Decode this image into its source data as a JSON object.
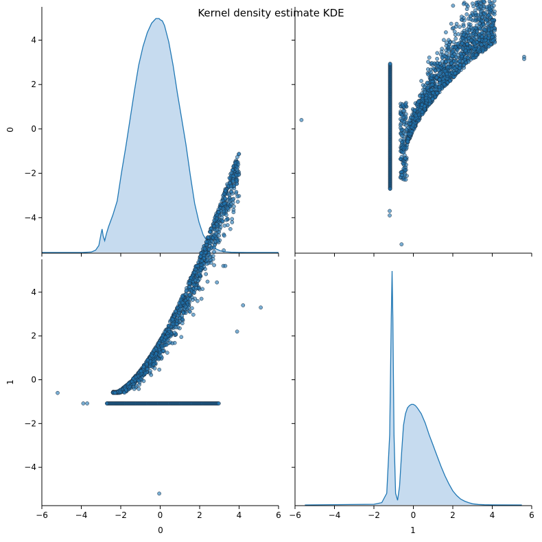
{
  "figure": {
    "title": "Kernel density estimate KDE",
    "colors": {
      "series": "#1f77b4",
      "kde_fill": "#c6dbef",
      "point_edge": "#1b2a3a"
    }
  },
  "chart_data": [
    {
      "panel": "top-left",
      "type": "area",
      "subtype": "kde",
      "variable": "0",
      "xlim": [
        -5.5,
        5.5
      ],
      "x": [
        -5.5,
        -3.6,
        -3.2,
        -3.0,
        -2.85,
        -2.75,
        -2.7,
        -2.65,
        -2.58,
        -2.5,
        -2.4,
        -2.2,
        -2.0,
        -1.8,
        -1.6,
        -1.4,
        -1.2,
        -1.0,
        -0.8,
        -0.6,
        -0.4,
        -0.2,
        -0.05,
        0.0,
        0.1,
        0.2,
        0.4,
        0.6,
        0.8,
        1.0,
        1.2,
        1.4,
        1.6,
        1.8,
        2.0,
        2.2,
        2.4,
        2.6,
        2.8,
        3.0,
        3.3,
        3.6,
        4.0,
        5.5
      ],
      "y_pct": [
        0,
        0,
        0.2,
        1.0,
        3.0,
        8.0,
        10.0,
        7.0,
        5.0,
        8.0,
        11.0,
        16.0,
        22.0,
        34.0,
        45.0,
        57.0,
        69.0,
        80.0,
        88.0,
        94.0,
        98.0,
        100.0,
        100.0,
        99.5,
        99.0,
        97.0,
        90.0,
        80.0,
        68.0,
        57.0,
        46.0,
        33.0,
        21.0,
        13.0,
        7.5,
        4.5,
        2.7,
        1.5,
        0.7,
        0.3,
        0.1,
        0.03,
        0,
        0
      ],
      "ylabel": "0",
      "yticks": [
        -4,
        -2,
        0,
        2,
        4
      ],
      "ylim": [
        -5.6,
        5.5
      ]
    },
    {
      "panel": "top-right",
      "type": "scatter",
      "x_variable": "1",
      "y_variable": "0",
      "xlim": [
        -5.5,
        5.5
      ],
      "ylim": [
        -5.6,
        5.5
      ],
      "floor_x": -1.08,
      "floor_y_range": [
        -2.7,
        2.95
      ],
      "trend_x_range": [
        -0.6,
        3.8
      ],
      "outliers": [
        [
          -5.2,
          0.4
        ],
        [
          -1.1,
          -3.7
        ],
        [
          -1.1,
          -3.9
        ],
        [
          -0.55,
          -5.2
        ],
        [
          3.3,
          5.2
        ],
        [
          5.15,
          3.25
        ],
        [
          5.15,
          3.15
        ],
        [
          -1.08,
          -2.7
        ],
        [
          3.5,
          4.1
        ]
      ]
    },
    {
      "panel": "bottom-left",
      "type": "scatter",
      "x_variable": "0",
      "y_variable": "1",
      "xlabel": "0",
      "ylabel": "1",
      "xlim": [
        -6,
        6
      ],
      "ylim": [
        -5.75,
        5.5
      ],
      "xticks": [
        -6,
        -4,
        -2,
        0,
        2,
        4,
        6
      ],
      "yticks": [
        -4,
        -2,
        0,
        2,
        4
      ],
      "floor_y": -1.08,
      "floor_x_range": [
        -2.7,
        3.0
      ],
      "trend_x_range": [
        -2.4,
        4.0
      ],
      "outliers": [
        [
          -5.2,
          -0.6
        ],
        [
          -3.9,
          -1.08
        ],
        [
          -3.7,
          -1.08
        ],
        [
          -2.7,
          -1.08
        ],
        [
          -0.05,
          -5.2
        ],
        [
          3.2,
          5.2
        ],
        [
          3.3,
          5.2
        ],
        [
          5.1,
          3.3
        ],
        [
          4.2,
          3.4
        ],
        [
          3.9,
          2.2
        ]
      ]
    },
    {
      "panel": "bottom-right",
      "type": "area",
      "subtype": "kde",
      "variable": "1",
      "xlabel": "1",
      "xlim": [
        -6,
        6
      ],
      "xticks": [
        -6,
        -4,
        -2,
        0,
        2,
        4,
        6
      ],
      "x": [
        -5.5,
        -2.0,
        -1.6,
        -1.35,
        -1.2,
        -1.12,
        -1.08,
        -1.04,
        -0.98,
        -0.9,
        -0.8,
        -0.7,
        -0.6,
        -0.5,
        -0.4,
        -0.3,
        -0.2,
        -0.1,
        0.0,
        0.1,
        0.2,
        0.4,
        0.6,
        0.8,
        1.0,
        1.2,
        1.4,
        1.6,
        1.8,
        2.0,
        2.2,
        2.4,
        2.6,
        2.8,
        3.0,
        3.3,
        3.6,
        4.0,
        5.5
      ],
      "y_pct": [
        0,
        0.3,
        1.0,
        5.0,
        30.0,
        80.0,
        100.0,
        80.0,
        30.0,
        5.0,
        2.0,
        8.0,
        22.0,
        34.0,
        39.0,
        41.5,
        42.5,
        43.0,
        43.0,
        42.5,
        41.5,
        39.0,
        35.0,
        30.0,
        25.5,
        21.0,
        16.5,
        12.5,
        9.0,
        6.0,
        4.0,
        2.5,
        1.6,
        1.0,
        0.5,
        0.2,
        0.1,
        0.03,
        0
      ]
    }
  ]
}
